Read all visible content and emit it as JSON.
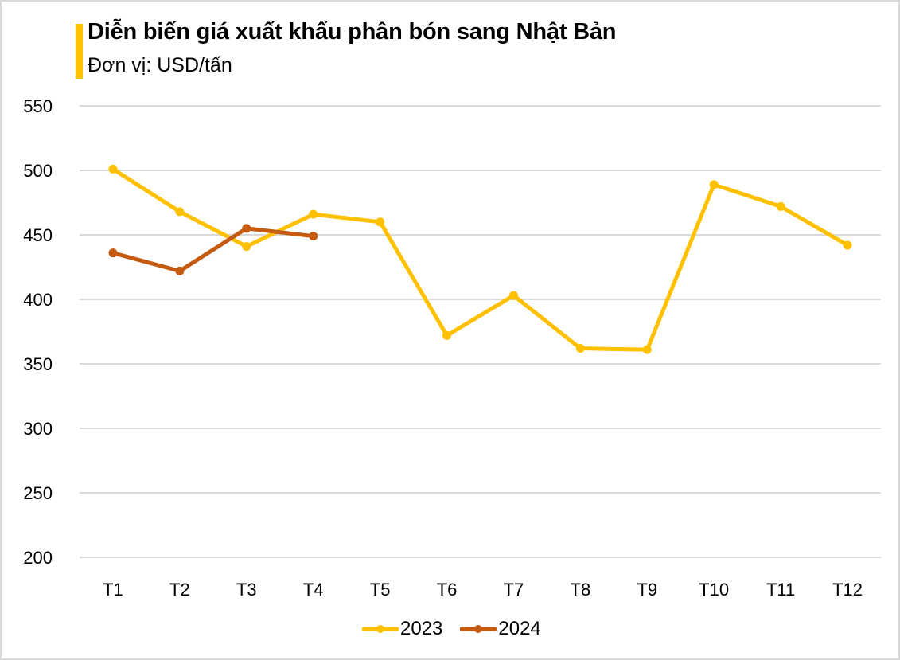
{
  "chart_data": {
    "type": "line",
    "title": "Diễn biến giá xuất khẩu phân bón sang Nhật Bản",
    "subtitle": "Đơn vị: USD/tấn",
    "xlabel": "",
    "ylabel": "",
    "ylim": [
      200,
      550
    ],
    "yticks": [
      200,
      250,
      300,
      350,
      400,
      450,
      500,
      550
    ],
    "grid": true,
    "legend_position": "bottom",
    "categories": [
      "T1",
      "T2",
      "T3",
      "T4",
      "T5",
      "T6",
      "T7",
      "T8",
      "T9",
      "T10",
      "T11",
      "T12"
    ],
    "series": [
      {
        "name": "2023",
        "color": "#FFC000",
        "values": [
          501,
          468,
          441,
          466,
          460,
          372,
          403,
          362,
          361,
          489,
          472,
          442
        ]
      },
      {
        "name": "2024",
        "color": "#C55A11",
        "values": [
          436,
          422,
          455,
          449,
          null,
          null,
          null,
          null,
          null,
          null,
          null,
          null
        ]
      }
    ]
  },
  "header": {
    "title": "Diễn biến giá xuất khẩu phân bón sang Nhật Bản",
    "subtitle": "Đơn vị: USD/tấn",
    "accent_color": "#FFC000"
  },
  "legend": {
    "items": [
      {
        "label": "2023",
        "color": "#FFC000"
      },
      {
        "label": "2024",
        "color": "#C55A11"
      }
    ]
  }
}
